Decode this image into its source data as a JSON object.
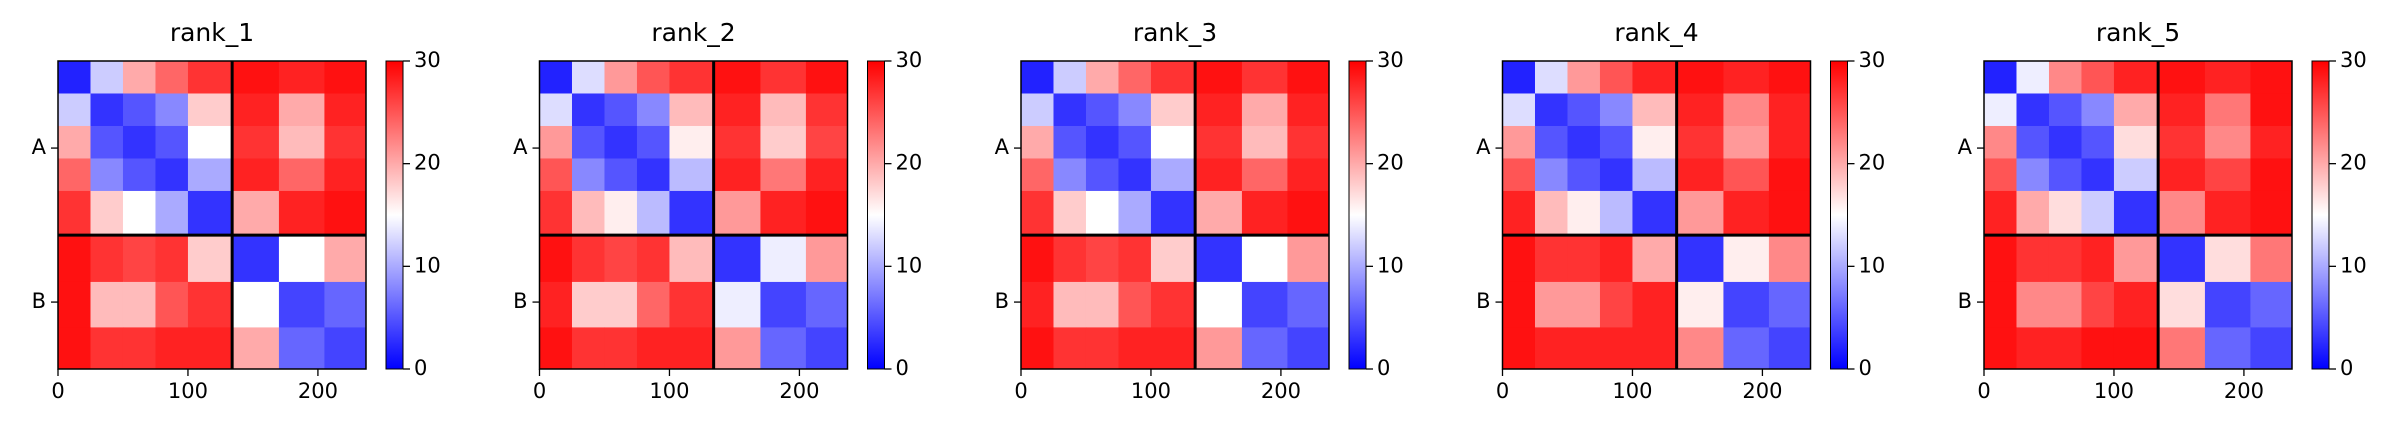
{
  "chart_data": [
    {
      "type": "heatmap",
      "title": "rank_1",
      "cmap": "bwr",
      "bins": [
        0,
        25,
        50,
        75,
        100,
        134,
        170,
        205,
        237
      ],
      "xlim": [
        0,
        237
      ],
      "xticks": [
        0,
        100,
        200
      ],
      "yticks": [
        {
          "value": 67,
          "label": "A"
        },
        {
          "value": 185.5,
          "label": "B"
        }
      ],
      "chain_breaks": [
        134
      ],
      "clim": [
        0,
        30
      ],
      "cticks": [
        0,
        10,
        20,
        30
      ],
      "values": [
        [
          2,
          12,
          20,
          24,
          27,
          29,
          28,
          29
        ],
        [
          12,
          3,
          5,
          8,
          18,
          28,
          20,
          28
        ],
        [
          20,
          5,
          3,
          5,
          15,
          27,
          19,
          27
        ],
        [
          24,
          8,
          5,
          3,
          10,
          28,
          24,
          28
        ],
        [
          27,
          18,
          15,
          10,
          3,
          20,
          28,
          29
        ],
        [
          29,
          27,
          26,
          27,
          18,
          3,
          15,
          20
        ],
        [
          29,
          19,
          19,
          25,
          27,
          15,
          4,
          6
        ],
        [
          29,
          27,
          27,
          28,
          28,
          20,
          6,
          4
        ]
      ]
    },
    {
      "type": "heatmap",
      "title": "rank_2",
      "cmap": "bwr",
      "bins": [
        0,
        25,
        50,
        75,
        100,
        134,
        170,
        205,
        237
      ],
      "xlim": [
        0,
        237
      ],
      "xticks": [
        0,
        100,
        200
      ],
      "yticks": [
        {
          "value": 67,
          "label": "A"
        },
        {
          "value": 185.5,
          "label": "B"
        }
      ],
      "chain_breaks": [
        134
      ],
      "clim": [
        0,
        30
      ],
      "cticks": [
        0,
        10,
        20,
        30
      ],
      "values": [
        [
          2,
          13,
          21,
          25,
          27,
          29,
          27,
          29
        ],
        [
          13,
          3,
          5,
          8,
          19,
          28,
          19,
          27
        ],
        [
          21,
          5,
          3,
          5,
          16,
          27,
          18,
          26
        ],
        [
          25,
          8,
          5,
          3,
          11,
          28,
          23,
          28
        ],
        [
          27,
          19,
          16,
          11,
          3,
          21,
          28,
          29
        ],
        [
          29,
          27,
          26,
          27,
          19,
          3,
          14,
          21
        ],
        [
          28,
          18,
          18,
          24,
          27,
          14,
          4,
          6
        ],
        [
          29,
          27,
          27,
          28,
          28,
          21,
          6,
          4
        ]
      ]
    },
    {
      "type": "heatmap",
      "title": "rank_3",
      "cmap": "bwr",
      "bins": [
        0,
        25,
        50,
        75,
        100,
        134,
        170,
        205,
        237
      ],
      "xlim": [
        0,
        237
      ],
      "xticks": [
        0,
        100,
        200
      ],
      "yticks": [
        {
          "value": 67,
          "label": "A"
        },
        {
          "value": 185.5,
          "label": "B"
        }
      ],
      "chain_breaks": [
        134
      ],
      "clim": [
        0,
        30
      ],
      "cticks": [
        0,
        10,
        20,
        30
      ],
      "values": [
        [
          2,
          12,
          20,
          24,
          27,
          29,
          27,
          29
        ],
        [
          12,
          3,
          5,
          8,
          18,
          28,
          20,
          28
        ],
        [
          20,
          5,
          3,
          5,
          15,
          27,
          19,
          27
        ],
        [
          24,
          8,
          5,
          3,
          10,
          28,
          24,
          28
        ],
        [
          27,
          18,
          15,
          10,
          3,
          20,
          28,
          29
        ],
        [
          29,
          27,
          26,
          27,
          18,
          3,
          15,
          21
        ],
        [
          28,
          19,
          19,
          25,
          27,
          15,
          4,
          6
        ],
        [
          29,
          27,
          27,
          28,
          28,
          21,
          6,
          4
        ]
      ]
    },
    {
      "type": "heatmap",
      "title": "rank_4",
      "cmap": "bwr",
      "bins": [
        0,
        25,
        50,
        75,
        100,
        134,
        170,
        205,
        237
      ],
      "xlim": [
        0,
        237
      ],
      "xticks": [
        0,
        100,
        200
      ],
      "yticks": [
        {
          "value": 67,
          "label": "A"
        },
        {
          "value": 185.5,
          "label": "B"
        }
      ],
      "chain_breaks": [
        134
      ],
      "clim": [
        0,
        30
      ],
      "cticks": [
        0,
        10,
        20,
        30
      ],
      "values": [
        [
          2,
          13,
          21,
          25,
          28,
          29,
          28,
          29
        ],
        [
          13,
          3,
          5,
          8,
          19,
          28,
          22,
          28
        ],
        [
          21,
          5,
          3,
          5,
          16,
          27,
          21,
          28
        ],
        [
          25,
          8,
          5,
          3,
          11,
          28,
          25,
          29
        ],
        [
          28,
          19,
          16,
          11,
          3,
          21,
          28,
          29
        ],
        [
          29,
          27,
          27,
          28,
          20,
          3,
          16,
          22
        ],
        [
          29,
          21,
          21,
          26,
          28,
          16,
          4,
          6
        ],
        [
          29,
          28,
          28,
          28,
          28,
          22,
          6,
          4
        ]
      ]
    },
    {
      "type": "heatmap",
      "title": "rank_5",
      "cmap": "bwr",
      "bins": [
        0,
        25,
        50,
        75,
        100,
        134,
        170,
        205,
        237
      ],
      "xlim": [
        0,
        237
      ],
      "xticks": [
        0,
        100,
        200
      ],
      "yticks": [
        {
          "value": 67,
          "label": "A"
        },
        {
          "value": 185.5,
          "label": "B"
        }
      ],
      "chain_breaks": [
        134
      ],
      "clim": [
        0,
        30
      ],
      "cticks": [
        0,
        10,
        20,
        30
      ],
      "values": [
        [
          2,
          14,
          22,
          25,
          28,
          29,
          28,
          29
        ],
        [
          14,
          3,
          5,
          8,
          20,
          28,
          23,
          29
        ],
        [
          22,
          5,
          3,
          5,
          17,
          27,
          22,
          28
        ],
        [
          25,
          8,
          5,
          3,
          12,
          28,
          26,
          29
        ],
        [
          28,
          20,
          17,
          12,
          3,
          22,
          28,
          29
        ],
        [
          29,
          27,
          27,
          28,
          21,
          3,
          17,
          23
        ],
        [
          29,
          22,
          22,
          26,
          28,
          17,
          4,
          6
        ],
        [
          29,
          28,
          28,
          29,
          29,
          23,
          6,
          4
        ]
      ]
    }
  ]
}
